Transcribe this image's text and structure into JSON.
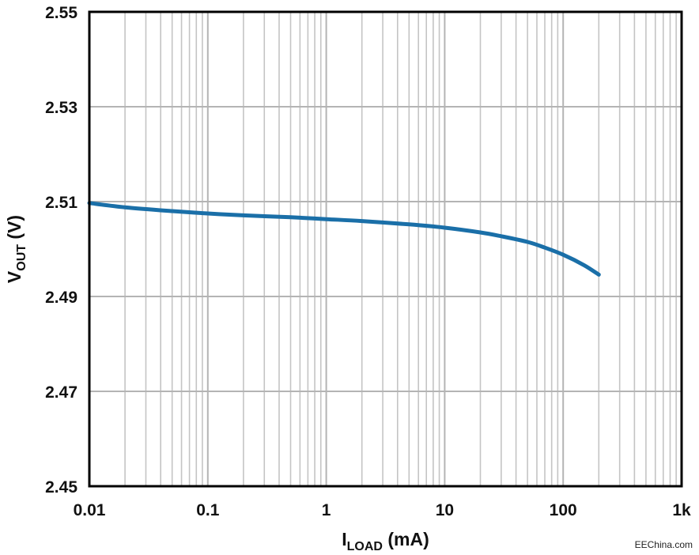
{
  "chart_data": {
    "type": "line",
    "xscale": "log",
    "xlim": [
      0.01,
      1000
    ],
    "ylim": [
      2.45,
      2.55
    ],
    "grid": true,
    "x_ticks": [
      {
        "value": 0.01,
        "label": "0.01"
      },
      {
        "value": 0.1,
        "label": "0.1"
      },
      {
        "value": 1,
        "label": "1"
      },
      {
        "value": 10,
        "label": "10"
      },
      {
        "value": 100,
        "label": "100"
      },
      {
        "value": 1000,
        "label": "1k"
      }
    ],
    "y_ticks": [
      {
        "value": 2.45,
        "label": "2.45"
      },
      {
        "value": 2.47,
        "label": "2.47"
      },
      {
        "value": 2.49,
        "label": "2.49"
      },
      {
        "value": 2.51,
        "label": "2.51"
      },
      {
        "value": 2.53,
        "label": "2.53"
      },
      {
        "value": 2.55,
        "label": "2.55"
      }
    ],
    "xlabel": {
      "main": "I",
      "sub": "LOAD",
      "rest": " (mA)"
    },
    "ylabel": {
      "main": "V",
      "sub": "OUT",
      "rest": " (V)"
    },
    "series": [
      {
        "color": "#1a6fa8",
        "x": [
          0.01,
          0.02,
          0.05,
          0.1,
          0.2,
          0.5,
          1,
          2,
          5,
          10,
          20,
          30,
          50,
          70,
          100,
          150,
          200
        ],
        "y": [
          2.5097,
          2.5088,
          2.508,
          2.5075,
          2.5071,
          2.5067,
          2.5063,
          2.5059,
          2.5052,
          2.5045,
          2.5035,
          2.5027,
          2.5015,
          2.5003,
          2.4988,
          2.4966,
          2.4946
        ]
      }
    ]
  },
  "watermark": "EEChina.com"
}
